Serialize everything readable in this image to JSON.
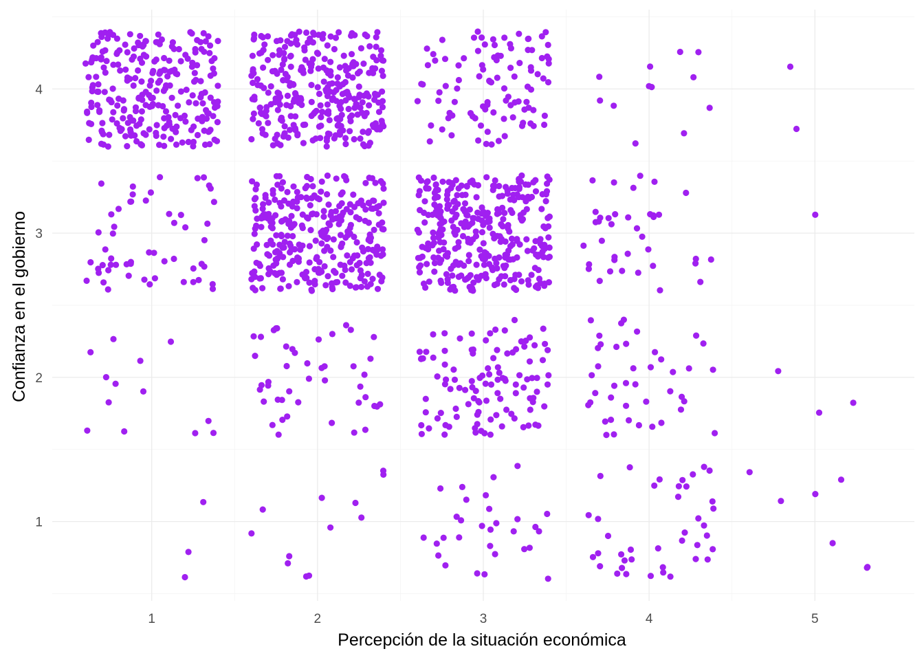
{
  "chart_data": {
    "type": "scatter",
    "title": "",
    "xlabel": "Percepción de la situación económica",
    "ylabel": "Confianza en el gobierno",
    "xlim": [
      0.4,
      5.6
    ],
    "ylim": [
      0.45,
      4.55
    ],
    "x_ticks": [
      "1",
      "2",
      "3",
      "4",
      "5"
    ],
    "y_ticks": [
      "1",
      "2",
      "3",
      "4"
    ],
    "grid": true,
    "point_color": "#A020F0",
    "jitter": 0.4,
    "cell_counts": [
      {
        "x": 1,
        "y": 4,
        "n": 260
      },
      {
        "x": 2,
        "y": 4,
        "n": 320
      },
      {
        "x": 3,
        "y": 4,
        "n": 100
      },
      {
        "x": 4,
        "y": 4,
        "n": 12
      },
      {
        "x": 5,
        "y": 4,
        "n": 2
      },
      {
        "x": 1,
        "y": 3,
        "n": 55
      },
      {
        "x": 2,
        "y": 3,
        "n": 320
      },
      {
        "x": 3,
        "y": 3,
        "n": 340
      },
      {
        "x": 4,
        "y": 3,
        "n": 38
      },
      {
        "x": 5,
        "y": 3,
        "n": 1
      },
      {
        "x": 1,
        "y": 2,
        "n": 13
      },
      {
        "x": 2,
        "y": 2,
        "n": 45
      },
      {
        "x": 3,
        "y": 2,
        "n": 110
      },
      {
        "x": 4,
        "y": 2,
        "n": 42
      },
      {
        "x": 5,
        "y": 2,
        "n": 3
      },
      {
        "x": 1,
        "y": 1,
        "n": 3
      },
      {
        "x": 2,
        "y": 1,
        "n": 12
      },
      {
        "x": 3,
        "y": 1,
        "n": 30
      },
      {
        "x": 4,
        "y": 1,
        "n": 40
      },
      {
        "x": 5,
        "y": 1,
        "n": 7
      }
    ]
  }
}
